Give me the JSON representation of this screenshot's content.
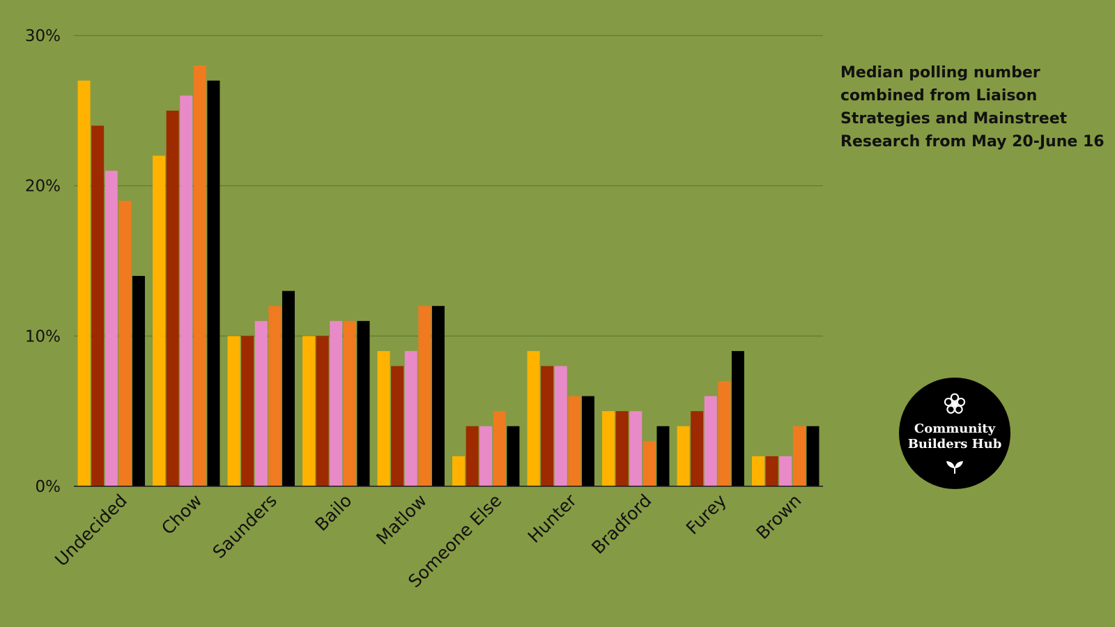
{
  "chart_data": {
    "type": "bar",
    "categories": [
      "Undecided",
      "Chow",
      "Saunders",
      "Bailo",
      "Matlow",
      "Someone Else",
      "Hunter",
      "Bradford",
      "Furey",
      "Brown"
    ],
    "series": [
      {
        "color": "#ffb300",
        "values": [
          27,
          22,
          10,
          10,
          9,
          2,
          9,
          5,
          4,
          2
        ]
      },
      {
        "color": "#9e2a00",
        "values": [
          24,
          25,
          10,
          10,
          8,
          4,
          8,
          5,
          5,
          2
        ]
      },
      {
        "color": "#e98ac8",
        "values": [
          21,
          26,
          11,
          11,
          9,
          4,
          8,
          5,
          6,
          2
        ]
      },
      {
        "color": "#f07a20",
        "values": [
          19,
          28,
          12,
          11,
          12,
          5,
          6,
          3,
          7,
          4
        ]
      },
      {
        "color": "#000000",
        "values": [
          14,
          27,
          13,
          11,
          12,
          4,
          6,
          4,
          9,
          4
        ]
      }
    ],
    "ylim": [
      0,
      30
    ],
    "yticks": [
      0,
      10,
      20,
      30
    ],
    "ytick_labels": [
      "0%",
      "10%",
      "20%",
      "30%"
    ],
    "grid": true,
    "title": "",
    "xlabel": "",
    "ylabel": ""
  },
  "note": "Median polling number combined from Liaison Strategies and Mainstreet Research from May 20-June 16",
  "logo": {
    "text": "Community\nBuilders Hub",
    "icons": [
      "flower-icon",
      "sprout-icon"
    ]
  },
  "colors": {
    "background": "#859a44",
    "gridline": "#5e7a2a"
  }
}
